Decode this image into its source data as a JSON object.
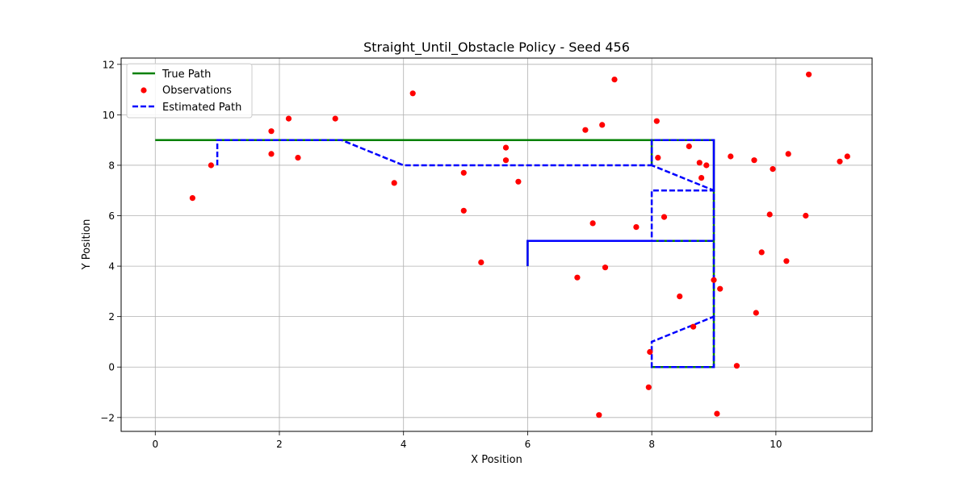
{
  "chart_data": {
    "type": "line",
    "title": "Straight_Until_Obstacle Policy - Seed 456",
    "xlabel": "X Position",
    "ylabel": "Y Position",
    "xlim": [
      -0.55,
      11.55
    ],
    "ylim": [
      -2.55,
      12.25
    ],
    "xticks": [
      0,
      2,
      4,
      6,
      8,
      10
    ],
    "yticks": [
      -2,
      0,
      2,
      4,
      6,
      8,
      10,
      12
    ],
    "xtick_labels": [
      "0",
      "2",
      "4",
      "6",
      "8",
      "10"
    ],
    "ytick_labels": [
      "−2",
      "0",
      "2",
      "4",
      "6",
      "8",
      "10",
      "12"
    ],
    "grid": true,
    "legend_position": "upper-left",
    "colors": {
      "true_path": "#008000",
      "observations": "#ff0000",
      "estimated_path": "#0000ff"
    },
    "series": [
      {
        "name": "True Path",
        "kind": "line",
        "style": "solid",
        "points": [
          [
            0,
            9
          ],
          [
            1,
            9
          ],
          [
            2,
            9
          ],
          [
            3,
            9
          ],
          [
            4,
            9
          ],
          [
            5,
            9
          ],
          [
            6,
            9
          ],
          [
            7,
            9
          ],
          [
            8,
            9
          ],
          [
            9,
            9
          ],
          [
            9,
            8
          ],
          [
            9,
            7
          ],
          [
            9,
            6
          ],
          [
            9,
            5
          ],
          [
            8,
            5
          ],
          [
            7,
            5
          ],
          [
            6,
            5
          ],
          [
            6,
            4
          ],
          [
            6,
            5
          ],
          [
            7,
            5
          ],
          [
            8,
            5
          ],
          [
            9,
            5
          ],
          [
            9,
            4
          ],
          [
            9,
            3
          ],
          [
            9,
            2
          ],
          [
            9,
            1
          ],
          [
            9,
            0
          ],
          [
            8,
            0
          ],
          [
            9,
            0
          ],
          [
            9,
            1
          ],
          [
            9,
            2
          ],
          [
            9,
            3
          ],
          [
            9,
            4
          ],
          [
            9,
            5
          ],
          [
            9,
            6
          ],
          [
            9,
            7
          ],
          [
            9,
            8
          ],
          [
            9,
            9
          ],
          [
            8,
            9
          ],
          [
            8,
            8
          ],
          [
            8,
            9
          ],
          [
            9,
            9
          ]
        ]
      },
      {
        "name": "Observations",
        "kind": "scatter",
        "points": [
          [
            0.6,
            6.7
          ],
          [
            0.9,
            8.0
          ],
          [
            1.87,
            9.35
          ],
          [
            1.87,
            8.45
          ],
          [
            2.15,
            9.85
          ],
          [
            2.3,
            8.3
          ],
          [
            2.9,
            9.85
          ],
          [
            3.85,
            7.3
          ],
          [
            4.15,
            10.85
          ],
          [
            4.97,
            7.7
          ],
          [
            4.97,
            6.2
          ],
          [
            5.25,
            4.15
          ],
          [
            5.65,
            8.7
          ],
          [
            5.65,
            8.2
          ],
          [
            5.85,
            7.35
          ],
          [
            6.8,
            3.55
          ],
          [
            6.93,
            9.4
          ],
          [
            7.05,
            5.7
          ],
          [
            7.15,
            -1.9
          ],
          [
            7.2,
            9.6
          ],
          [
            7.25,
            3.95
          ],
          [
            7.4,
            11.4
          ],
          [
            7.75,
            5.55
          ],
          [
            7.95,
            -0.8
          ],
          [
            7.97,
            0.6
          ],
          [
            8.08,
            9.75
          ],
          [
            8.1,
            8.3
          ],
          [
            8.2,
            5.95
          ],
          [
            8.45,
            2.8
          ],
          [
            8.6,
            8.75
          ],
          [
            8.67,
            1.6
          ],
          [
            8.77,
            8.1
          ],
          [
            8.8,
            7.5
          ],
          [
            8.88,
            8.0
          ],
          [
            9.0,
            3.45
          ],
          [
            9.05,
            -1.85
          ],
          [
            9.1,
            3.1
          ],
          [
            9.27,
            8.35
          ],
          [
            9.37,
            0.05
          ],
          [
            9.65,
            8.2
          ],
          [
            9.68,
            2.15
          ],
          [
            9.77,
            4.55
          ],
          [
            9.9,
            6.05
          ],
          [
            9.95,
            7.85
          ],
          [
            10.17,
            4.2
          ],
          [
            10.2,
            8.45
          ],
          [
            10.48,
            6.0
          ],
          [
            10.53,
            11.6
          ],
          [
            11.03,
            8.15
          ],
          [
            11.15,
            8.35
          ]
        ]
      },
      {
        "name": "Estimated Path",
        "kind": "line",
        "style": "dashed",
        "points": [
          [
            1,
            8
          ],
          [
            1,
            9
          ],
          [
            2,
            9
          ],
          [
            3,
            9
          ],
          [
            4,
            8
          ],
          [
            5,
            8
          ],
          [
            6,
            8
          ],
          [
            7,
            8
          ],
          [
            8,
            8
          ],
          [
            8,
            9
          ],
          [
            9,
            9
          ],
          [
            9,
            8
          ],
          [
            9,
            7
          ],
          [
            9,
            6
          ],
          [
            9,
            5
          ],
          [
            8,
            5
          ],
          [
            7,
            5
          ],
          [
            6,
            5
          ],
          [
            6,
            4
          ],
          [
            6,
            5
          ],
          [
            7,
            5
          ],
          [
            8,
            5
          ],
          [
            8,
            6
          ],
          [
            8,
            7
          ],
          [
            9,
            7
          ],
          [
            9,
            6
          ],
          [
            9,
            5
          ],
          [
            9,
            4
          ],
          [
            9,
            3
          ],
          [
            9,
            2
          ],
          [
            8,
            1
          ],
          [
            8,
            0
          ],
          [
            9,
            0
          ],
          [
            9,
            1
          ],
          [
            9,
            2
          ],
          [
            9,
            3
          ],
          [
            9,
            4
          ],
          [
            9,
            5
          ],
          [
            9,
            6
          ],
          [
            9,
            7
          ],
          [
            9,
            8
          ],
          [
            9,
            9
          ],
          [
            8,
            9
          ],
          [
            8,
            8
          ],
          [
            9,
            7
          ],
          [
            9,
            8
          ],
          [
            9,
            9
          ]
        ]
      }
    ]
  }
}
